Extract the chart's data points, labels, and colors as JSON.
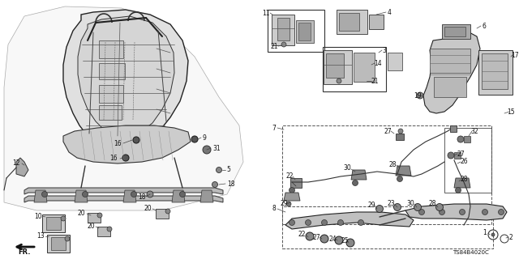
{
  "background_color": "#ffffff",
  "part_number": "TS84B4020C",
  "fig_width": 6.4,
  "fig_height": 3.2,
  "dpi": 100
}
